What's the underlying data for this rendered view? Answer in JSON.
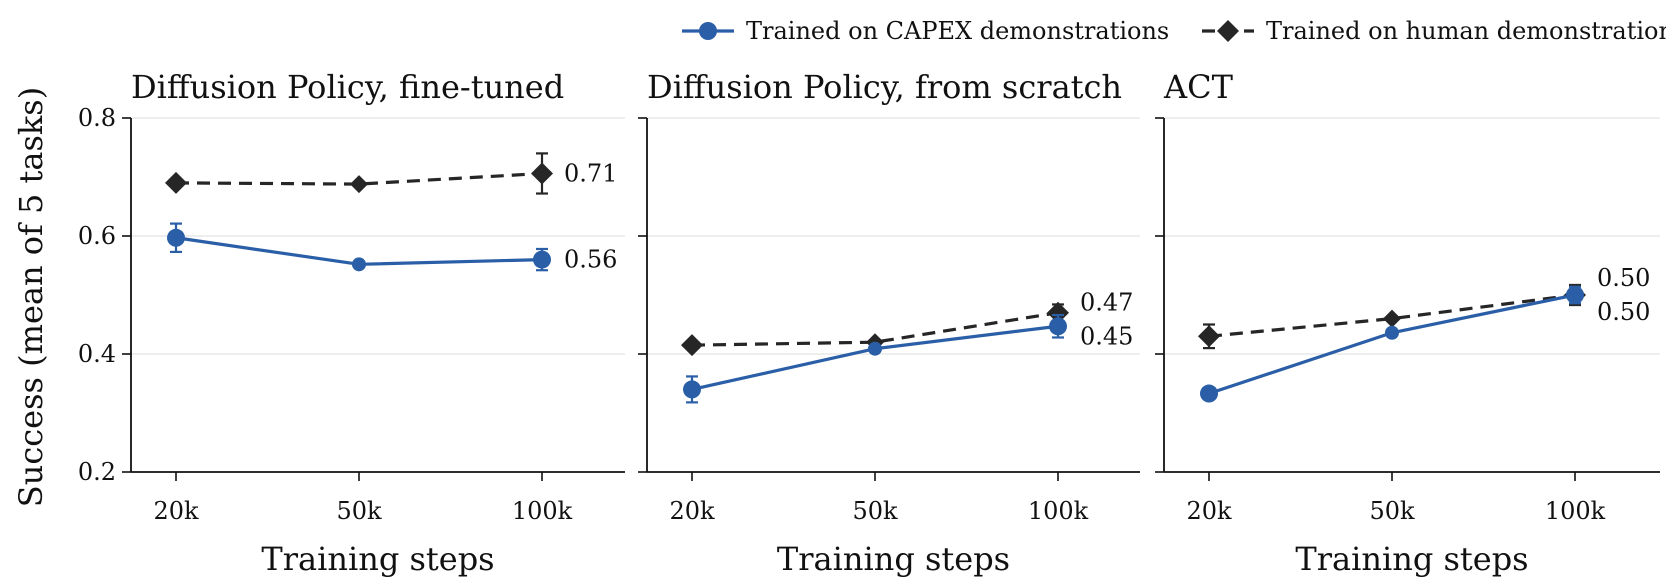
{
  "chart_data": {
    "type": "line",
    "categories": [
      "20k",
      "50k",
      "100k"
    ],
    "xlabel": "Training steps",
    "ylabel": "Success (mean of 5 tasks)",
    "ylim": [
      0.2,
      0.8
    ],
    "yticks": [
      0.2,
      0.4,
      0.6,
      0.8
    ],
    "ytick_labels": [
      "0.2",
      "0.4",
      "0.6",
      "0.8"
    ],
    "grid": true,
    "legend": {
      "placement": "top-right",
      "entries": [
        {
          "label": "Trained on CAPEX demonstrations",
          "color": "#2a5fa8",
          "marker": "circle",
          "linestyle": "solid"
        },
        {
          "label": "Trained on human demonstrations",
          "color": "#262626",
          "marker": "diamond",
          "linestyle": "dashed"
        }
      ]
    },
    "panels": [
      {
        "title": "Diffusion Policy, fine-tuned",
        "series": [
          {
            "name": "Trained on CAPEX demonstrations",
            "values": [
              0.597,
              0.552,
              0.56
            ],
            "errors": [
              0.024,
              0.0,
              0.018
            ],
            "end_label": "0.56"
          },
          {
            "name": "Trained on human demonstrations",
            "values": [
              0.69,
              0.688,
              0.706
            ],
            "errors": [
              0.0,
              0.0,
              0.034
            ],
            "end_label": "0.71"
          }
        ]
      },
      {
        "title": "Diffusion Policy, from scratch",
        "series": [
          {
            "name": "Trained on CAPEX demonstrations",
            "values": [
              0.34,
              0.409,
              0.447
            ],
            "errors": [
              0.022,
              0.0,
              0.019
            ],
            "end_label": "0.45"
          },
          {
            "name": "Trained on human demonstrations",
            "values": [
              0.415,
              0.42,
              0.47
            ],
            "errors": [
              0.0,
              0.0,
              0.014
            ],
            "end_label": "0.47"
          }
        ]
      },
      {
        "title": "ACT",
        "series": [
          {
            "name": "Trained on CAPEX demonstrations",
            "values": [
              0.333,
              0.436,
              0.5
            ],
            "errors": [
              0.0,
              0.0,
              0.014
            ],
            "end_label": "0.50"
          },
          {
            "name": "Trained on human demonstrations",
            "values": [
              0.43,
              0.46,
              0.5
            ],
            "errors": [
              0.02,
              0.0,
              0.017
            ],
            "end_label": "0.50"
          }
        ]
      }
    ]
  }
}
